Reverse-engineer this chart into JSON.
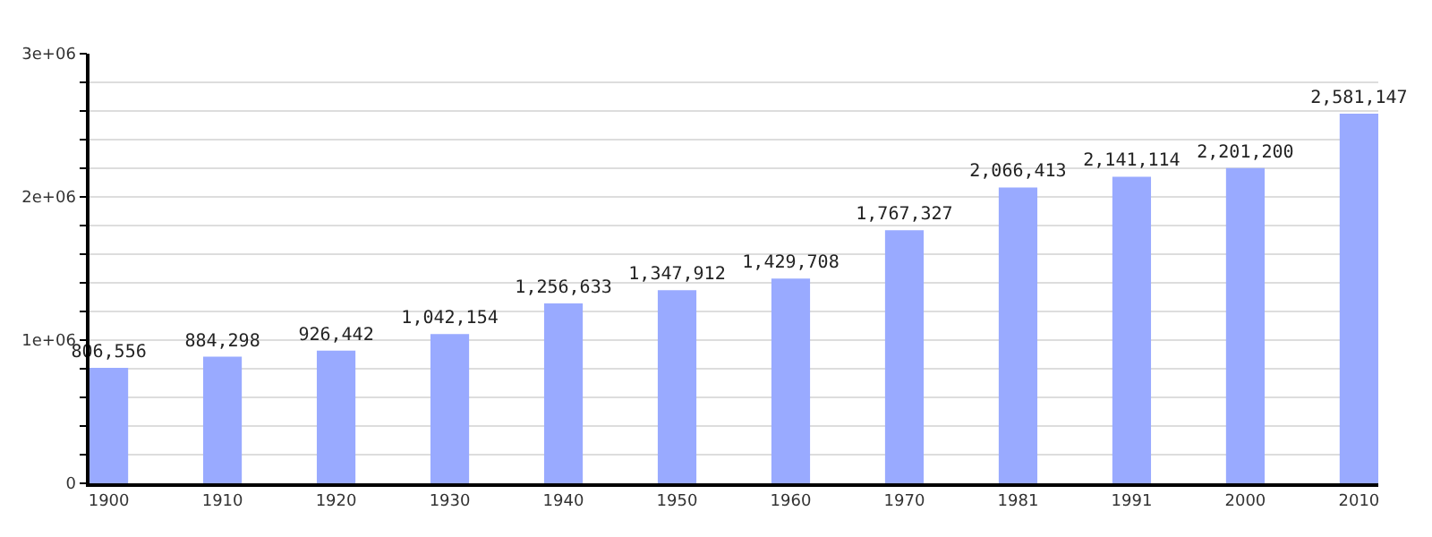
{
  "chart_data": {
    "type": "bar",
    "categories": [
      "1900",
      "1910",
      "1920",
      "1930",
      "1940",
      "1950",
      "1960",
      "1970",
      "1981",
      "1991",
      "2000",
      "2010"
    ],
    "values": [
      806556,
      884298,
      926442,
      1042154,
      1256633,
      1347912,
      1429708,
      1767327,
      2066413,
      2141114,
      2201200,
      2581147
    ],
    "value_labels": [
      "806,556",
      "884,298",
      "926,442",
      "1,042,154",
      "1,256,633",
      "1,347,912",
      "1,429,708",
      "1,767,327",
      "2,066,413",
      "2,141,114",
      "2,201,200",
      "2,581,147"
    ],
    "color": "#99aaff",
    "ylim": [
      0,
      3000000
    ],
    "yticks": [
      {
        "value": 0,
        "label": "0"
      },
      {
        "value": 200000,
        "label": null
      },
      {
        "value": 400000,
        "label": null
      },
      {
        "value": 600000,
        "label": null
      },
      {
        "value": 800000,
        "label": null
      },
      {
        "value": 1000000,
        "label": "1e+06"
      },
      {
        "value": 1200000,
        "label": null
      },
      {
        "value": 1400000,
        "label": null
      },
      {
        "value": 1600000,
        "label": null
      },
      {
        "value": 1800000,
        "label": null
      },
      {
        "value": 2000000,
        "label": "2e+06"
      },
      {
        "value": 2200000,
        "label": null
      },
      {
        "value": 2400000,
        "label": null
      },
      {
        "value": 2600000,
        "label": null
      },
      {
        "value": 2800000,
        "label": null
      },
      {
        "value": 3000000,
        "label": "3e+06"
      }
    ],
    "grid": "y"
  }
}
